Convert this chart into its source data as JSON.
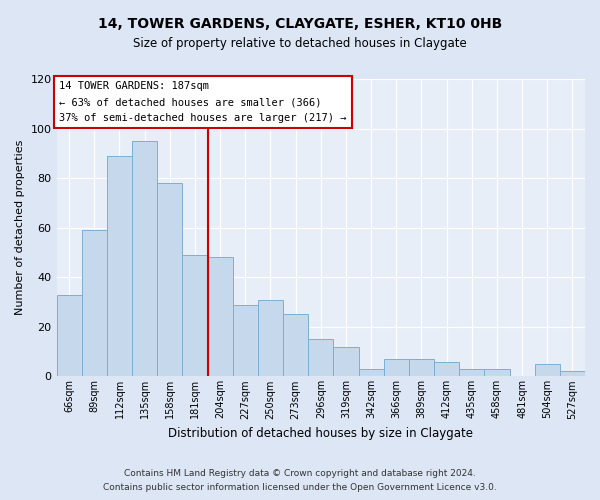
{
  "title": "14, TOWER GARDENS, CLAYGATE, ESHER, KT10 0HB",
  "subtitle": "Size of property relative to detached houses in Claygate",
  "xlabel": "Distribution of detached houses by size in Claygate",
  "ylabel": "Number of detached properties",
  "categories": [
    "66sqm",
    "89sqm",
    "112sqm",
    "135sqm",
    "158sqm",
    "181sqm",
    "204sqm",
    "227sqm",
    "250sqm",
    "273sqm",
    "296sqm",
    "319sqm",
    "342sqm",
    "366sqm",
    "389sqm",
    "412sqm",
    "435sqm",
    "458sqm",
    "481sqm",
    "504sqm",
    "527sqm"
  ],
  "values": [
    33,
    59,
    89,
    95,
    78,
    49,
    48,
    29,
    31,
    25,
    15,
    12,
    3,
    7,
    7,
    6,
    3,
    3,
    0,
    5,
    2
  ],
  "bar_color": "#c5d8ec",
  "bar_edge_color": "#7bafd4",
  "ylim": [
    0,
    120
  ],
  "yticks": [
    0,
    20,
    40,
    60,
    80,
    100,
    120
  ],
  "property_line_idx": 5,
  "property_line_color": "#cc0000",
  "annotation_title": "14 TOWER GARDENS: 187sqm",
  "annotation_line1": "← 63% of detached houses are smaller (366)",
  "annotation_line2": "37% of semi-detached houses are larger (217) →",
  "annotation_box_color": "#ffffff",
  "annotation_box_edge_color": "#cc0000",
  "footer_line1": "Contains HM Land Registry data © Crown copyright and database right 2024.",
  "footer_line2": "Contains public sector information licensed under the Open Government Licence v3.0.",
  "background_color": "#dce6f5",
  "plot_background_color": "#e8eef8",
  "grid_color": "#ffffff"
}
